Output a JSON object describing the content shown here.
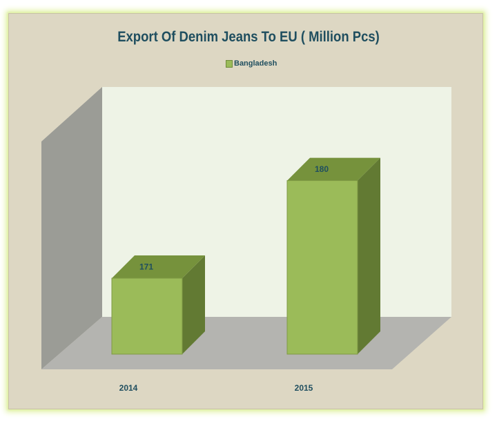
{
  "chart_data": {
    "type": "bar",
    "title": "Export Of Denim Jeans To EU ( Million Pcs)",
    "categories": [
      "2014",
      "2015"
    ],
    "series": [
      {
        "name": "Bangladesh",
        "values": [
          171,
          180
        ]
      }
    ],
    "data_labels": [
      "171",
      "180"
    ],
    "ylim": [
      164,
      185
    ],
    "grid": false,
    "legend_position": "top",
    "style": "3d-column",
    "colors": {
      "bar_front": "#9bbb59",
      "bar_top": "#76923c",
      "bar_side": "#627a33",
      "back_wall": "#eef3e6",
      "side_wall": "#9b9c96",
      "floor": "#b4b4b0",
      "card_background": "#ddd7c3",
      "text": "#1f4e5f"
    }
  }
}
